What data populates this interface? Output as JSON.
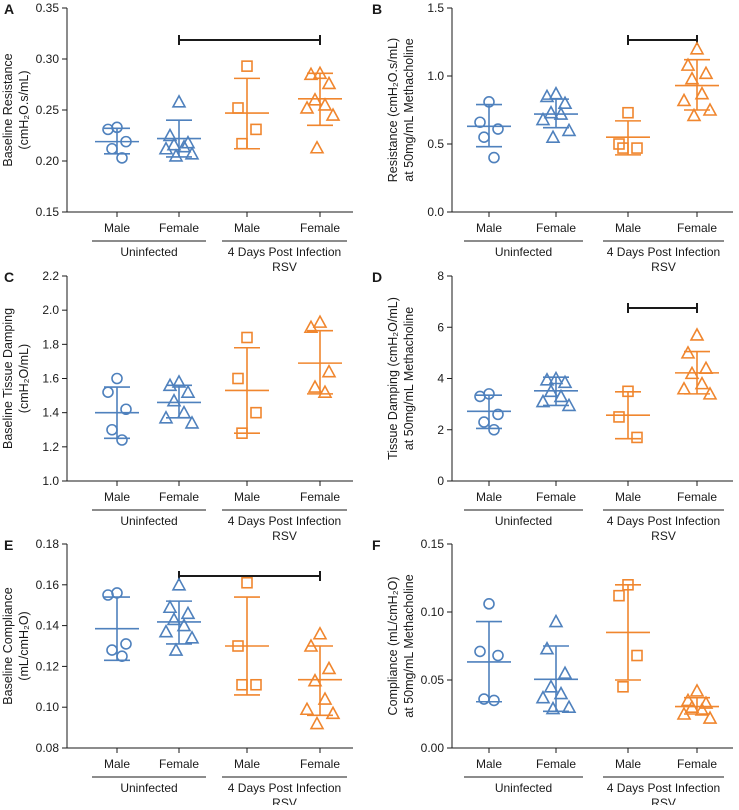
{
  "colors": {
    "blue": "#4f81bd",
    "orange": "#f0862e",
    "axis": "#1a1a1a"
  },
  "chart_data": [
    {
      "id": "A",
      "letter": "A",
      "type": "scatter",
      "ylabel": [
        "Baseline Resistance",
        "(cmH₂O.s/mL)"
      ],
      "ylim": [
        0.15,
        0.35
      ],
      "yticks": [
        "0.15",
        "0.20",
        "0.25",
        "0.30",
        "0.35"
      ],
      "ytick_values": [
        0.15,
        0.2,
        0.25,
        0.3,
        0.35
      ],
      "categories": [
        "Male",
        "Female",
        "Male",
        "Female"
      ],
      "groups": [
        {
          "label": "Uninfected",
          "span": [
            0,
            1
          ]
        },
        {
          "label": "4 Days Post Infection",
          "sublabel": "RSV",
          "span": [
            2,
            3
          ]
        }
      ],
      "series": [
        {
          "name": "Uninfected Male",
          "marker": "circle",
          "color": "blue",
          "points": [
            0.233,
            0.231,
            0.219,
            0.212,
            0.203
          ],
          "mean": 0.219,
          "sd": [
            0.207,
            0.232
          ]
        },
        {
          "name": "Uninfected Female",
          "marker": "triangle",
          "color": "blue",
          "points": [
            0.258,
            0.225,
            0.218,
            0.216,
            0.214,
            0.212,
            0.207,
            0.205
          ],
          "mean": 0.222,
          "sd": [
            0.204,
            0.24
          ]
        },
        {
          "name": "RSV Male",
          "marker": "square",
          "color": "orange",
          "points": [
            0.293,
            0.252,
            0.231,
            0.217
          ],
          "mean": 0.247,
          "sd": [
            0.212,
            0.281
          ]
        },
        {
          "name": "RSV Female",
          "marker": "triangle",
          "color": "orange",
          "points": [
            0.286,
            0.285,
            0.276,
            0.26,
            0.255,
            0.252,
            0.245,
            0.213
          ],
          "mean": 0.261,
          "sd": [
            0.235,
            0.286
          ]
        }
      ],
      "brackets": [
        [
          1,
          3
        ]
      ]
    },
    {
      "id": "B",
      "letter": "B",
      "type": "scatter",
      "ylabel": [
        "Resistance (cmH₂O.s/mL)",
        "at 50mg/mL Methacholine"
      ],
      "ylim": [
        0.0,
        1.5
      ],
      "yticks": [
        "0.0",
        "0.5",
        "1.0",
        "1.5"
      ],
      "ytick_values": [
        0.0,
        0.5,
        1.0,
        1.5
      ],
      "categories": [
        "Male",
        "Female",
        "Male",
        "Female"
      ],
      "groups": [
        {
          "label": "Uninfected",
          "span": [
            0,
            1
          ]
        },
        {
          "label": "4 Days Post Infection",
          "sublabel": "RSV",
          "span": [
            2,
            3
          ]
        }
      ],
      "series": [
        {
          "name": "Uninfected Male",
          "marker": "circle",
          "color": "blue",
          "points": [
            0.81,
            0.66,
            0.61,
            0.55,
            0.4
          ],
          "mean": 0.63,
          "sd": [
            0.48,
            0.79
          ]
        },
        {
          "name": "Uninfected Female",
          "marker": "triangle",
          "color": "blue",
          "points": [
            0.87,
            0.85,
            0.8,
            0.73,
            0.72,
            0.68,
            0.6,
            0.55
          ],
          "mean": 0.72,
          "sd": [
            0.62,
            0.83
          ]
        },
        {
          "name": "RSV Male",
          "marker": "square",
          "color": "orange",
          "points": [
            0.73,
            0.5,
            0.47,
            0.47
          ],
          "mean": 0.55,
          "sd": [
            0.42,
            0.67
          ]
        },
        {
          "name": "RSV Female",
          "marker": "triangle",
          "color": "orange",
          "points": [
            1.2,
            1.08,
            1.02,
            0.98,
            0.87,
            0.82,
            0.75,
            0.71
          ],
          "mean": 0.93,
          "sd": [
            0.75,
            1.12
          ]
        }
      ],
      "brackets": [
        [
          2,
          3
        ]
      ]
    },
    {
      "id": "C",
      "letter": "C",
      "type": "scatter",
      "ylabel": [
        "Baseline Tissue Damping",
        "(cmH₂O/mL)"
      ],
      "ylim": [
        1.0,
        2.2
      ],
      "yticks": [
        "1.0",
        "1.2",
        "1.4",
        "1.6",
        "1.8",
        "2.0",
        "2.2"
      ],
      "ytick_values": [
        1.0,
        1.2,
        1.4,
        1.6,
        1.8,
        2.0,
        2.2
      ],
      "categories": [
        "Male",
        "Female",
        "Male",
        "Female"
      ],
      "groups": [
        {
          "label": "Uninfected",
          "span": [
            0,
            1
          ]
        },
        {
          "label": "4 Days Post Infection",
          "sublabel": "RSV",
          "span": [
            2,
            3
          ]
        }
      ],
      "series": [
        {
          "name": "Uninfected Male",
          "marker": "circle",
          "color": "blue",
          "points": [
            1.6,
            1.52,
            1.42,
            1.3,
            1.24
          ],
          "mean": 1.4,
          "sd": [
            1.25,
            1.55
          ]
        },
        {
          "name": "Uninfected Female",
          "marker": "triangle",
          "color": "blue",
          "points": [
            1.58,
            1.56,
            1.52,
            1.47,
            1.4,
            1.37,
            1.34
          ],
          "mean": 1.46,
          "sd": [
            1.37,
            1.56
          ]
        },
        {
          "name": "RSV Male",
          "marker": "square",
          "color": "orange",
          "points": [
            1.84,
            1.6,
            1.4,
            1.28
          ],
          "mean": 1.53,
          "sd": [
            1.28,
            1.78
          ]
        },
        {
          "name": "RSV Female",
          "marker": "triangle",
          "color": "orange",
          "points": [
            1.93,
            1.9,
            1.64,
            1.55,
            1.52
          ],
          "mean": 1.69,
          "sd": [
            1.51,
            1.88
          ]
        }
      ],
      "brackets": []
    },
    {
      "id": "D",
      "letter": "D",
      "type": "scatter",
      "ylabel": [
        "Tissue Damping (cmH₂O/mL)",
        "at 50mg/mL Methacholine"
      ],
      "ylim": [
        0,
        8
      ],
      "yticks": [
        "0",
        "2",
        "4",
        "6",
        "8"
      ],
      "ytick_values": [
        0,
        2,
        4,
        6,
        8
      ],
      "categories": [
        "Male",
        "Female",
        "Male",
        "Female"
      ],
      "groups": [
        {
          "label": "Uninfected",
          "span": [
            0,
            1
          ]
        },
        {
          "label": "4 Days Post Infection",
          "sublabel": "RSV",
          "span": [
            2,
            3
          ]
        }
      ],
      "series": [
        {
          "name": "Uninfected Male",
          "marker": "circle",
          "color": "blue",
          "points": [
            3.4,
            3.3,
            2.6,
            2.3,
            2.0
          ],
          "mean": 2.72,
          "sd": [
            2.05,
            3.35
          ]
        },
        {
          "name": "Uninfected Female",
          "marker": "triangle",
          "color": "blue",
          "points": [
            4.0,
            3.95,
            3.85,
            3.5,
            3.3,
            3.1,
            2.95
          ],
          "mean": 3.52,
          "sd": [
            2.95,
            4.05
          ]
        },
        {
          "name": "RSV Male",
          "marker": "square",
          "color": "orange",
          "points": [
            3.5,
            2.5,
            1.7
          ],
          "mean": 2.57,
          "sd": [
            1.65,
            3.48
          ]
        },
        {
          "name": "RSV Female",
          "marker": "triangle",
          "color": "orange",
          "points": [
            5.7,
            5.0,
            4.4,
            4.2,
            3.8,
            3.6,
            3.4
          ],
          "mean": 4.22,
          "sd": [
            3.4,
            5.05
          ]
        }
      ],
      "brackets": [
        [
          2,
          3
        ]
      ]
    },
    {
      "id": "E",
      "letter": "E",
      "type": "scatter",
      "ylabel": [
        "Baseline Compliance",
        "(mL/cmH₂O)"
      ],
      "ylim": [
        0.08,
        0.18
      ],
      "yticks": [
        "0.08",
        "0.10",
        "0.12",
        "0.14",
        "0.16",
        "0.18"
      ],
      "ytick_values": [
        0.08,
        0.1,
        0.12,
        0.14,
        0.16,
        0.18
      ],
      "categories": [
        "Male",
        "Female",
        "Male",
        "Female"
      ],
      "groups": [
        {
          "label": "Uninfected",
          "span": [
            0,
            1
          ]
        },
        {
          "label": "4 Days Post Infection",
          "sublabel": "RSV",
          "span": [
            2,
            3
          ]
        }
      ],
      "series": [
        {
          "name": "Uninfected Male",
          "marker": "circle",
          "color": "blue",
          "points": [
            0.156,
            0.155,
            0.131,
            0.128,
            0.125
          ],
          "mean": 0.1385,
          "sd": [
            0.123,
            0.154
          ]
        },
        {
          "name": "Uninfected Female",
          "marker": "triangle",
          "color": "blue",
          "points": [
            0.16,
            0.149,
            0.146,
            0.143,
            0.14,
            0.137,
            0.134,
            0.128
          ],
          "mean": 0.1418,
          "sd": [
            0.131,
            0.152
          ]
        },
        {
          "name": "RSV Male",
          "marker": "square",
          "color": "orange",
          "points": [
            0.161,
            0.13,
            0.111,
            0.111
          ],
          "mean": 0.13,
          "sd": [
            0.106,
            0.154
          ]
        },
        {
          "name": "RSV Female",
          "marker": "triangle",
          "color": "orange",
          "points": [
            0.136,
            0.13,
            0.119,
            0.113,
            0.104,
            0.099,
            0.097,
            0.092
          ],
          "mean": 0.1135,
          "sd": [
            0.096,
            0.13
          ]
        }
      ],
      "brackets": [
        [
          1,
          3
        ]
      ]
    },
    {
      "id": "F",
      "letter": "F",
      "type": "scatter",
      "ylabel": [
        "Compliance (mL/cmH₂O)",
        "at 50mg/mL Methacholine"
      ],
      "ylim": [
        0.0,
        0.15
      ],
      "yticks": [
        "0.00",
        "0.05",
        "0.10",
        "0.15"
      ],
      "ytick_values": [
        0.0,
        0.05,
        0.1,
        0.15
      ],
      "categories": [
        "Male",
        "Female",
        "Male",
        "Female"
      ],
      "groups": [
        {
          "label": "Uninfected",
          "span": [
            0,
            1
          ]
        },
        {
          "label": "4 Days Post Infection",
          "sublabel": "RSV",
          "span": [
            2,
            3
          ]
        }
      ],
      "series": [
        {
          "name": "Uninfected Male",
          "marker": "circle",
          "color": "blue",
          "points": [
            0.106,
            0.071,
            0.068,
            0.036,
            0.035
          ],
          "mean": 0.0633,
          "sd": [
            0.034,
            0.093
          ]
        },
        {
          "name": "Uninfected Female",
          "marker": "triangle",
          "color": "blue",
          "points": [
            0.093,
            0.073,
            0.055,
            0.045,
            0.04,
            0.037,
            0.03,
            0.029
          ],
          "mean": 0.0505,
          "sd": [
            0.027,
            0.075
          ]
        },
        {
          "name": "RSV Male",
          "marker": "square",
          "color": "orange",
          "points": [
            0.12,
            0.112,
            0.068,
            0.045
          ],
          "mean": 0.085,
          "sd": [
            0.05,
            0.12
          ]
        },
        {
          "name": "RSV Female",
          "marker": "triangle",
          "color": "orange",
          "points": [
            0.042,
            0.035,
            0.033,
            0.03,
            0.028,
            0.025,
            0.022
          ],
          "mean": 0.0305,
          "sd": [
            0.025,
            0.037
          ]
        }
      ],
      "brackets": []
    }
  ]
}
